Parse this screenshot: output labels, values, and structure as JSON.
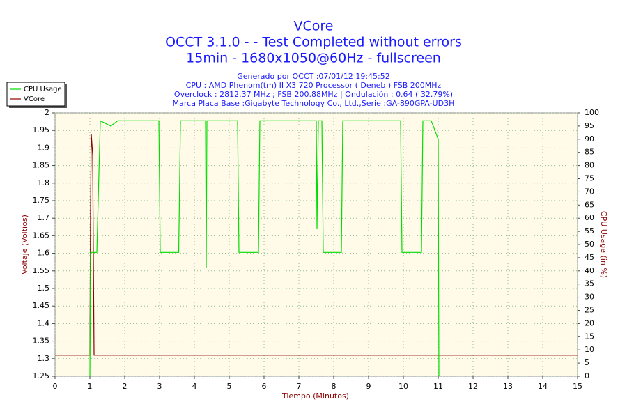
{
  "chart_data": {
    "type": "line",
    "title": "VCore",
    "title_lines": [
      "OCCT 3.1.0 -  - Test Completed without errors",
      "15min - 1680x1050@60Hz - fullscreen"
    ],
    "subtitle_lines": [
      "Generado por OCCT :07/01/12 19:45:52",
      "CPU : AMD Phenom(tm) II X3 720 Processor ( Deneb ) FSB 200MHz",
      "Overclock : 2812.37 MHz ; FSB 200.88MHz | Ondulación : 0.64 ( 32.79%)",
      "Marca Placa Base :Gigabyte Technology Co., Ltd.,Serie :GA-890GPA-UD3H"
    ],
    "x_label": "Tiempo (Minutos)",
    "y_label": "Voltaje (Voltios)",
    "y2_label": "CPU Usage (in %)",
    "xlim": [
      0,
      15
    ],
    "xticks": [
      0,
      1,
      2,
      3,
      4,
      5,
      6,
      7,
      8,
      9,
      10,
      11,
      12,
      13,
      14,
      15
    ],
    "ylim": [
      1.25,
      2
    ],
    "yticks": [
      1.25,
      1.3,
      1.35,
      1.4,
      1.45,
      1.5,
      1.55,
      1.6,
      1.65,
      1.7,
      1.75,
      1.8,
      1.85,
      1.9,
      1.95,
      2
    ],
    "y2lim": [
      0,
      100
    ],
    "y2ticks": [
      0,
      5,
      10,
      15,
      20,
      25,
      30,
      35,
      40,
      45,
      50,
      55,
      60,
      65,
      70,
      75,
      80,
      85,
      90,
      95,
      100
    ],
    "grid": true,
    "legend": "top-left",
    "series": [
      {
        "name": "CPU Usage",
        "color": "#00dd00",
        "axis": "y2",
        "x": [
          1.0,
          1.02,
          1.2,
          1.3,
          1.6,
          1.8,
          2.2,
          2.6,
          2.98,
          3.02,
          3.55,
          3.6,
          4.0,
          4.32,
          4.34,
          4.36,
          4.8,
          5.24,
          5.28,
          5.84,
          5.88,
          6.4,
          7.0,
          7.5,
          7.52,
          7.56,
          7.66,
          7.7,
          8.22,
          8.26,
          8.8,
          9.4,
          9.92,
          9.96,
          10.52,
          10.56,
          10.8,
          11.0,
          11.02
        ],
        "values": [
          0,
          47,
          47,
          97,
          95,
          97,
          97,
          97,
          97,
          47,
          47,
          97,
          97,
          97,
          41,
          97,
          97,
          97,
          47,
          47,
          97,
          97,
          97,
          97,
          56,
          97,
          97,
          47,
          47,
          97,
          97,
          97,
          97,
          47,
          47,
          97,
          97,
          90,
          0
        ]
      },
      {
        "name": "VCore",
        "color": "#8b0000",
        "x": [
          0,
          1.0,
          1.02,
          1.04,
          1.08,
          1.12,
          15
        ],
        "values": [
          1.31,
          1.31,
          1.72,
          1.94,
          1.88,
          1.31,
          1.31
        ]
      }
    ]
  }
}
